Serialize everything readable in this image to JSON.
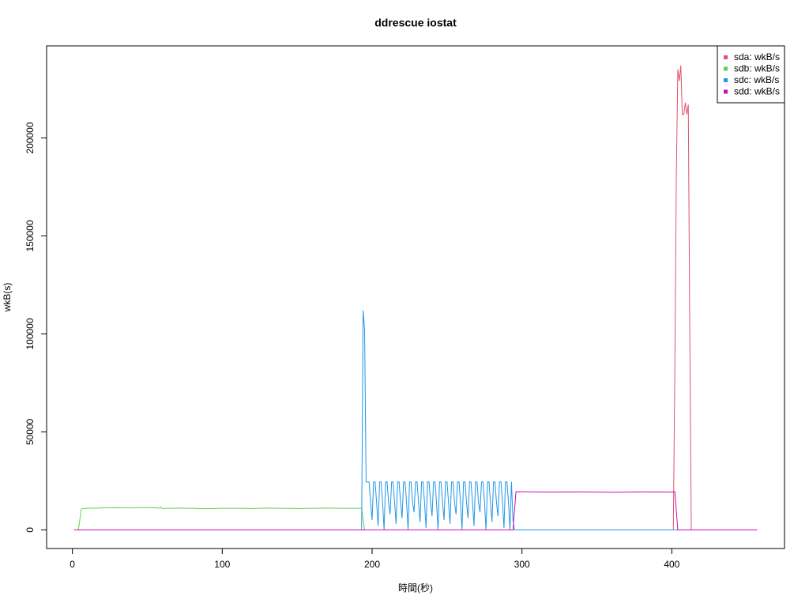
{
  "chart_data": {
    "type": "line",
    "title": "ddrescue iostat",
    "xlabel": "時間(秒)",
    "ylabel": "wkB(s)",
    "xlim": [
      -17.2,
      475.2
    ],
    "ylim": [
      -9500,
      247000
    ],
    "xticks": [
      0,
      100,
      200,
      300,
      400
    ],
    "yticks": [
      0,
      50000,
      100000,
      150000,
      200000
    ],
    "legend": "topright",
    "series": [
      {
        "name": "sda: wkB/s",
        "color": "#df536b",
        "x": [
          1,
          401,
          402,
          403,
          404,
          405,
          406,
          407,
          408,
          409,
          410,
          411,
          412,
          413,
          457
        ],
        "values": [
          0,
          0,
          80000,
          180000,
          235000,
          229000,
          237000,
          212000,
          212000,
          218000,
          212000,
          217000,
          100000,
          0,
          0
        ]
      },
      {
        "name": "sdb: wkB/s",
        "color": "#61d04f",
        "x": [
          1,
          4,
          6,
          10,
          20,
          30,
          40,
          50,
          58,
          59,
          60,
          70,
          80,
          90,
          100,
          110,
          120,
          130,
          140,
          150,
          160,
          170,
          180,
          190,
          193,
          195,
          457
        ],
        "values": [
          0,
          0,
          10800,
          11000,
          11200,
          11300,
          11200,
          11400,
          11100,
          11700,
          10900,
          11100,
          11000,
          10800,
          11000,
          11000,
          10900,
          11100,
          11000,
          10900,
          11000,
          11100,
          11000,
          11000,
          11000,
          0,
          0
        ]
      },
      {
        "name": "sdc: wkB/s",
        "color": "#2297e6",
        "x": [
          1,
          193,
          194,
          195,
          196,
          197,
          198,
          199,
          200,
          201,
          202,
          203,
          204,
          205,
          206,
          207,
          208,
          209,
          210,
          211,
          212,
          213,
          214,
          215,
          216,
          217,
          218,
          219,
          220,
          221,
          222,
          223,
          224,
          225,
          226,
          227,
          228,
          229,
          230,
          231,
          232,
          233,
          234,
          235,
          236,
          237,
          238,
          239,
          240,
          241,
          242,
          243,
          244,
          245,
          246,
          247,
          248,
          249,
          250,
          251,
          252,
          253,
          254,
          255,
          256,
          257,
          258,
          259,
          260,
          261,
          262,
          263,
          264,
          265,
          266,
          267,
          268,
          269,
          270,
          271,
          272,
          273,
          274,
          275,
          276,
          277,
          278,
          279,
          280,
          281,
          282,
          283,
          284,
          285,
          286,
          287,
          288,
          289,
          290,
          291,
          292,
          293,
          294,
          295,
          457
        ],
        "values": [
          0,
          0,
          112000,
          102000,
          24500,
          24500,
          24500,
          14000,
          5000,
          24500,
          24500,
          14000,
          2000,
          24500,
          24500,
          14000,
          0,
          24500,
          24500,
          14000,
          8000,
          24500,
          24500,
          14000,
          3000,
          24500,
          24500,
          14000,
          6000,
          24500,
          24500,
          14000,
          0,
          24500,
          24500,
          14000,
          9000,
          24500,
          24500,
          14000,
          4000,
          24500,
          24500,
          14000,
          1000,
          24500,
          24500,
          14000,
          7000,
          24500,
          24500,
          14000,
          0,
          24500,
          24500,
          14000,
          5000,
          24500,
          24500,
          14000,
          3000,
          24500,
          24500,
          14000,
          8000,
          24500,
          24500,
          14000,
          0,
          24500,
          24500,
          14000,
          6000,
          24500,
          24500,
          14000,
          2000,
          24500,
          24500,
          14000,
          9000,
          24500,
          24500,
          14000,
          0,
          24500,
          24500,
          14000,
          4000,
          24500,
          24500,
          14000,
          7000,
          24500,
          24500,
          14000,
          1000,
          24500,
          24500,
          14000,
          0,
          24500,
          5000,
          0,
          0
        ]
      },
      {
        "name": "sdd: wkB/s",
        "color": "#cd0bbc",
        "x": [
          1,
          294,
          296,
          320,
          340,
          360,
          380,
          400,
          402,
          404,
          457
        ],
        "values": [
          0,
          0,
          19500,
          19300,
          19400,
          19200,
          19400,
          19300,
          19500,
          0,
          0
        ]
      }
    ]
  }
}
